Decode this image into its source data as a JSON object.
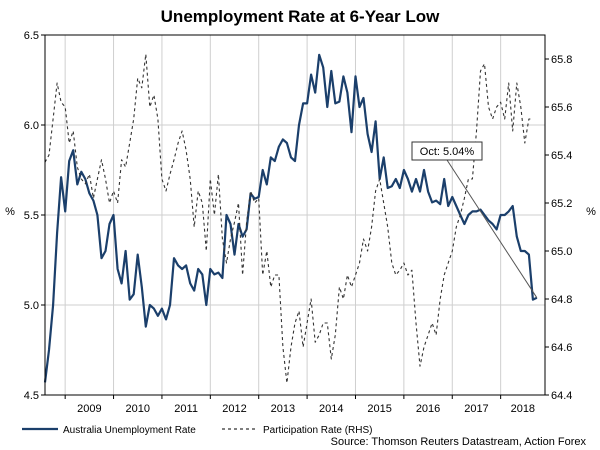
{
  "chart_data": {
    "type": "line",
    "title": "Unemployment Rate at 6-Year Low",
    "ylabel_left": "%",
    "ylabel_right": "%",
    "ylim_left": [
      4.5,
      6.5
    ],
    "ylim_right": [
      64.4,
      65.9
    ],
    "yticks_left": [
      "4.5",
      "5.0",
      "5.5",
      "6.0",
      "6.5"
    ],
    "yticks_right": [
      "64.4",
      "64.6",
      "64.8",
      "65.0",
      "65.2",
      "65.4",
      "65.6",
      "65.8"
    ],
    "xlim": [
      "2008-08",
      "2018-12"
    ],
    "x_tick_labels": [
      "2009",
      "2010",
      "2011",
      "2012",
      "2013",
      "2014",
      "2015",
      "2016",
      "2017",
      "2018"
    ],
    "grid": true,
    "series": [
      {
        "name": "Australia Unemployment Rate",
        "axis": "left",
        "color": "#1b3f6b",
        "style": "solid",
        "points": [
          [
            "2008-08",
            4.57
          ],
          [
            "2008-09",
            4.75
          ],
          [
            "2008-10",
            5.0
          ],
          [
            "2008-11",
            5.4
          ],
          [
            "2008-12",
            5.71
          ],
          [
            "2009-01",
            5.52
          ],
          [
            "2009-02",
            5.8
          ],
          [
            "2009-03",
            5.86
          ],
          [
            "2009-04",
            5.67
          ],
          [
            "2009-05",
            5.74
          ],
          [
            "2009-06",
            5.7
          ],
          [
            "2009-07",
            5.62
          ],
          [
            "2009-08",
            5.58
          ],
          [
            "2009-09",
            5.5
          ],
          [
            "2009-10",
            5.26
          ],
          [
            "2009-11",
            5.3
          ],
          [
            "2009-12",
            5.45
          ],
          [
            "2010-01",
            5.5
          ],
          [
            "2010-02",
            5.2
          ],
          [
            "2010-03",
            5.12
          ],
          [
            "2010-04",
            5.3
          ],
          [
            "2010-05",
            5.03
          ],
          [
            "2010-06",
            5.06
          ],
          [
            "2010-07",
            5.28
          ],
          [
            "2010-08",
            5.1
          ],
          [
            "2010-09",
            4.88
          ],
          [
            "2010-10",
            5.0
          ],
          [
            "2010-11",
            4.98
          ],
          [
            "2010-12",
            4.94
          ],
          [
            "2011-01",
            4.98
          ],
          [
            "2011-02",
            4.92
          ],
          [
            "2011-03",
            5.0
          ],
          [
            "2011-04",
            5.26
          ],
          [
            "2011-05",
            5.22
          ],
          [
            "2011-06",
            5.2
          ],
          [
            "2011-07",
            5.22
          ],
          [
            "2011-08",
            5.12
          ],
          [
            "2011-09",
            5.08
          ],
          [
            "2011-10",
            5.2
          ],
          [
            "2011-11",
            5.17
          ],
          [
            "2011-12",
            5.0
          ],
          [
            "2012-01",
            5.2
          ],
          [
            "2012-02",
            5.17
          ],
          [
            "2012-03",
            5.18
          ],
          [
            "2012-04",
            5.15
          ],
          [
            "2012-05",
            5.5
          ],
          [
            "2012-06",
            5.45
          ],
          [
            "2012-07",
            5.28
          ],
          [
            "2012-08",
            5.45
          ],
          [
            "2012-09",
            5.38
          ],
          [
            "2012-10",
            5.42
          ],
          [
            "2012-11",
            5.62
          ],
          [
            "2012-12",
            5.59
          ],
          [
            "2013-01",
            5.6
          ],
          [
            "2013-02",
            5.75
          ],
          [
            "2013-03",
            5.67
          ],
          [
            "2013-04",
            5.82
          ],
          [
            "2013-05",
            5.8
          ],
          [
            "2013-06",
            5.88
          ],
          [
            "2013-07",
            5.92
          ],
          [
            "2013-08",
            5.9
          ],
          [
            "2013-09",
            5.82
          ],
          [
            "2013-10",
            5.8
          ],
          [
            "2013-11",
            6.0
          ],
          [
            "2013-12",
            6.12
          ],
          [
            "2014-01",
            6.12
          ],
          [
            "2014-02",
            6.28
          ],
          [
            "2014-03",
            6.18
          ],
          [
            "2014-04",
            6.39
          ],
          [
            "2014-05",
            6.32
          ],
          [
            "2014-06",
            6.1
          ],
          [
            "2014-07",
            6.3
          ],
          [
            "2014-08",
            6.12
          ],
          [
            "2014-09",
            6.13
          ],
          [
            "2014-10",
            6.27
          ],
          [
            "2014-11",
            6.18
          ],
          [
            "2014-12",
            5.96
          ],
          [
            "2015-01",
            6.27
          ],
          [
            "2015-02",
            6.1
          ],
          [
            "2015-03",
            6.15
          ],
          [
            "2015-04",
            5.95
          ],
          [
            "2015-05",
            5.85
          ],
          [
            "2015-06",
            6.02
          ],
          [
            "2015-07",
            5.7
          ],
          [
            "2015-08",
            5.82
          ],
          [
            "2015-09",
            5.65
          ],
          [
            "2015-10",
            5.66
          ],
          [
            "2015-11",
            5.7
          ],
          [
            "2015-12",
            5.65
          ],
          [
            "2016-01",
            5.75
          ],
          [
            "2016-02",
            5.7
          ],
          [
            "2016-03",
            5.63
          ],
          [
            "2016-04",
            5.7
          ],
          [
            "2016-05",
            5.63
          ],
          [
            "2016-06",
            5.75
          ],
          [
            "2016-07",
            5.63
          ],
          [
            "2016-08",
            5.57
          ],
          [
            "2016-09",
            5.58
          ],
          [
            "2016-10",
            5.56
          ],
          [
            "2016-11",
            5.7
          ],
          [
            "2016-12",
            5.55
          ],
          [
            "2017-01",
            5.6
          ],
          [
            "2017-02",
            5.55
          ],
          [
            "2017-03",
            5.5
          ],
          [
            "2017-04",
            5.45
          ],
          [
            "2017-05",
            5.5
          ],
          [
            "2017-06",
            5.52
          ],
          [
            "2017-07",
            5.52
          ],
          [
            "2017-08",
            5.53
          ],
          [
            "2017-09",
            5.5
          ],
          [
            "2017-10",
            5.47
          ],
          [
            "2017-11",
            5.45
          ],
          [
            "2017-12",
            5.42
          ],
          [
            "2018-01",
            5.5
          ],
          [
            "2018-02",
            5.5
          ],
          [
            "2018-03",
            5.52
          ],
          [
            "2018-04",
            5.55
          ],
          [
            "2018-05",
            5.38
          ],
          [
            "2018-06",
            5.3
          ],
          [
            "2018-07",
            5.3
          ],
          [
            "2018-08",
            5.28
          ],
          [
            "2018-09",
            5.03
          ],
          [
            "2018-10",
            5.04
          ]
        ]
      },
      {
        "name": "Participation Rate (RHS)",
        "axis": "right",
        "color": "#333333",
        "style": "dashed",
        "points": [
          [
            "2008-08",
            65.37
          ],
          [
            "2008-09",
            65.4
          ],
          [
            "2008-10",
            65.55
          ],
          [
            "2008-11",
            65.7
          ],
          [
            "2008-12",
            65.62
          ],
          [
            "2009-01",
            65.6
          ],
          [
            "2009-02",
            65.45
          ],
          [
            "2009-03",
            65.5
          ],
          [
            "2009-04",
            65.35
          ],
          [
            "2009-05",
            65.3
          ],
          [
            "2009-06",
            65.28
          ],
          [
            "2009-07",
            65.32
          ],
          [
            "2009-08",
            65.22
          ],
          [
            "2009-09",
            65.3
          ],
          [
            "2009-10",
            65.38
          ],
          [
            "2009-11",
            65.3
          ],
          [
            "2009-12",
            65.2
          ],
          [
            "2010-01",
            65.25
          ],
          [
            "2010-02",
            65.2
          ],
          [
            "2010-03",
            65.38
          ],
          [
            "2010-04",
            65.35
          ],
          [
            "2010-05",
            65.45
          ],
          [
            "2010-06",
            65.55
          ],
          [
            "2010-07",
            65.72
          ],
          [
            "2010-08",
            65.68
          ],
          [
            "2010-09",
            65.82
          ],
          [
            "2010-10",
            65.6
          ],
          [
            "2010-11",
            65.65
          ],
          [
            "2010-12",
            65.55
          ],
          [
            "2011-01",
            65.3
          ],
          [
            "2011-02",
            65.25
          ],
          [
            "2011-03",
            65.32
          ],
          [
            "2011-04",
            65.38
          ],
          [
            "2011-05",
            65.45
          ],
          [
            "2011-06",
            65.5
          ],
          [
            "2011-07",
            65.42
          ],
          [
            "2011-08",
            65.3
          ],
          [
            "2011-09",
            65.1
          ],
          [
            "2011-10",
            65.25
          ],
          [
            "2011-11",
            65.2
          ],
          [
            "2011-12",
            65.0
          ],
          [
            "2012-01",
            65.3
          ],
          [
            "2012-02",
            65.15
          ],
          [
            "2012-03",
            65.32
          ],
          [
            "2012-04",
            65.05
          ],
          [
            "2012-05",
            64.95
          ],
          [
            "2012-06",
            65.05
          ],
          [
            "2012-07",
            65.12
          ],
          [
            "2012-08",
            65.2
          ],
          [
            "2012-09",
            64.9
          ],
          [
            "2012-10",
            65.12
          ],
          [
            "2012-11",
            65.25
          ],
          [
            "2012-12",
            65.2
          ],
          [
            "2013-01",
            65.22
          ],
          [
            "2013-02",
            64.9
          ],
          [
            "2013-03",
            65.0
          ],
          [
            "2013-04",
            64.85
          ],
          [
            "2013-05",
            64.9
          ],
          [
            "2013-06",
            64.9
          ],
          [
            "2013-07",
            64.6
          ],
          [
            "2013-08",
            64.45
          ],
          [
            "2013-09",
            64.6
          ],
          [
            "2013-10",
            64.7
          ],
          [
            "2013-11",
            64.75
          ],
          [
            "2013-12",
            64.6
          ],
          [
            "2014-01",
            64.7
          ],
          [
            "2014-02",
            64.8
          ],
          [
            "2014-03",
            64.62
          ],
          [
            "2014-04",
            64.65
          ],
          [
            "2014-05",
            64.7
          ],
          [
            "2014-06",
            64.7
          ],
          [
            "2014-07",
            64.55
          ],
          [
            "2014-08",
            64.65
          ],
          [
            "2014-09",
            64.85
          ],
          [
            "2014-10",
            64.8
          ],
          [
            "2014-11",
            64.9
          ],
          [
            "2014-12",
            64.85
          ],
          [
            "2015-01",
            64.9
          ],
          [
            "2015-02",
            64.95
          ],
          [
            "2015-03",
            65.05
          ],
          [
            "2015-04",
            65.0
          ],
          [
            "2015-05",
            65.1
          ],
          [
            "2015-06",
            65.25
          ],
          [
            "2015-07",
            65.3
          ],
          [
            "2015-08",
            65.2
          ],
          [
            "2015-09",
            65.1
          ],
          [
            "2015-10",
            64.95
          ],
          [
            "2015-11",
            64.9
          ],
          [
            "2015-12",
            64.92
          ],
          [
            "2016-01",
            64.95
          ],
          [
            "2016-02",
            64.9
          ],
          [
            "2016-03",
            64.92
          ],
          [
            "2016-04",
            64.7
          ],
          [
            "2016-05",
            64.52
          ],
          [
            "2016-06",
            64.6
          ],
          [
            "2016-07",
            64.65
          ],
          [
            "2016-08",
            64.7
          ],
          [
            "2016-09",
            64.65
          ],
          [
            "2016-10",
            64.8
          ],
          [
            "2016-11",
            64.9
          ],
          [
            "2016-12",
            64.95
          ],
          [
            "2017-01",
            65.0
          ],
          [
            "2017-02",
            65.1
          ],
          [
            "2017-03",
            65.15
          ],
          [
            "2017-04",
            65.22
          ],
          [
            "2017-05",
            65.3
          ],
          [
            "2017-06",
            65.3
          ],
          [
            "2017-07",
            65.5
          ],
          [
            "2017-08",
            65.75
          ],
          [
            "2017-09",
            65.78
          ],
          [
            "2017-10",
            65.6
          ],
          [
            "2017-11",
            65.55
          ],
          [
            "2017-12",
            65.6
          ],
          [
            "2018-01",
            65.62
          ],
          [
            "2018-02",
            65.55
          ],
          [
            "2018-03",
            65.7
          ],
          [
            "2018-04",
            65.5
          ],
          [
            "2018-05",
            65.7
          ],
          [
            "2018-06",
            65.6
          ],
          [
            "2018-07",
            65.45
          ],
          [
            "2018-08",
            65.55
          ],
          [
            "2018-09",
            65.55
          ]
        ]
      }
    ],
    "annotation": {
      "text": "Oct: 5.04%",
      "target": [
        "2018-10",
        5.04
      ]
    },
    "legend_position": "bottom-left",
    "source": "Source: Thomson Reuters Datastream, Action Forex"
  }
}
